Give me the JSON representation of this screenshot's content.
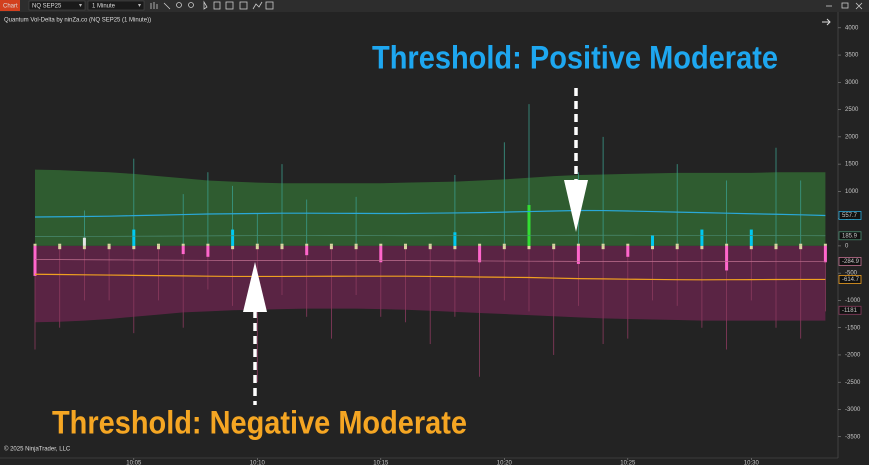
{
  "toolbar": {
    "chart_button": "Chart",
    "instrument": "NQ SEP25",
    "interval": "1 Minute"
  },
  "chart_data": {
    "type": "voldelta",
    "title": "Quantum Vol-Delta by ninZa.co (NQ SEP25 (1 Minute))",
    "copyright": "© 2025 NinjaTrader, LLC",
    "annotations": [
      {
        "text": "Threshold: Positive Moderate",
        "color": "#1ea7f0"
      },
      {
        "text": "Threshold: Negative Moderate",
        "color": "#f5a623"
      }
    ],
    "categories": [
      null,
      null,
      null,
      null,
      "10:05",
      null,
      null,
      null,
      null,
      "10:10",
      null,
      null,
      null,
      null,
      "10:15",
      null,
      null,
      null,
      null,
      "10:20",
      null,
      null,
      null,
      null,
      "10:25",
      null,
      null,
      null,
      null,
      "10:30",
      null,
      null,
      null
    ],
    "ylim": [
      -3890,
      4180
    ],
    "yticks": [
      4000,
      3500,
      3000,
      2500,
      2000,
      1500,
      1000,
      500,
      0,
      -500,
      -1000,
      -1500,
      -2000,
      -2500,
      -3000,
      -3500
    ],
    "bands": [
      {
        "name": "upper band",
        "color": "#2f5c30",
        "values": [
          1400,
          1390,
          1370,
          1350,
          1320,
          1280,
          1240,
          1200,
          1180,
          1160,
          1150,
          1150,
          1150,
          1150,
          1150,
          1160,
          1170,
          1180,
          1200,
          1220,
          1250,
          1280,
          1300,
          1310,
          1320,
          1330,
          1340,
          1340,
          1340,
          1340,
          1350,
          1350,
          1350
        ]
      },
      {
        "name": "lower band",
        "color": "#5a2444",
        "values": [
          -1400,
          -1390,
          -1370,
          -1340,
          -1300,
          -1260,
          -1220,
          -1200,
          -1180,
          -1170,
          -1160,
          -1150,
          -1150,
          -1150,
          -1160,
          -1170,
          -1190,
          -1210,
          -1230,
          -1250,
          -1270,
          -1290,
          -1310,
          -1330,
          -1340,
          -1350,
          -1360,
          -1370,
          -1370,
          -1370,
          -1370,
          -1370,
          -1370
        ]
      }
    ],
    "wicks": [
      {
        "name": "high",
        "color": "#3a9a88",
        "values": [
          0,
          0,
          650,
          0,
          1600,
          0,
          950,
          1350,
          1100,
          600,
          1500,
          850,
          0,
          900,
          0,
          0,
          0,
          1300,
          0,
          1900,
          2600,
          0,
          1350,
          2000,
          0,
          0,
          1500,
          0,
          1200,
          0,
          1800,
          1200,
          0
        ]
      },
      {
        "name": "low",
        "color": "#8a3a5e",
        "values": [
          -1900,
          -1500,
          -1000,
          -1000,
          -1600,
          -1000,
          -1500,
          -800,
          -1100,
          -2500,
          -900,
          -1300,
          -1700,
          -900,
          -1300,
          -1400,
          -1800,
          -1300,
          -2400,
          -1000,
          -1200,
          -2000,
          -1100,
          -1800,
          -1700,
          -1000,
          -1100,
          -1500,
          -1900,
          -1000,
          -1500,
          -1700,
          -1200
        ]
      }
    ],
    "bars": [
      {
        "name": "up",
        "values": [
          40,
          40,
          150,
          40,
          300,
          40,
          40,
          40,
          300,
          40,
          40,
          40,
          40,
          40,
          40,
          40,
          40,
          250,
          40,
          40,
          750,
          40,
          40,
          40,
          40,
          200,
          40,
          300,
          40,
          300,
          40,
          40,
          40
        ],
        "colors": [
          "#d9d4a0",
          "#d9d4a0",
          "#e6e6e6",
          "#d9d4a0",
          "#00c8f0",
          "#d9d4a0",
          "#d9d4a0",
          "#d9d4a0",
          "#00c8f0",
          "#d9d4a0",
          "#d9d4a0",
          "#d9d4a0",
          "#d9d4a0",
          "#d9d4a0",
          "#d9d4a0",
          "#d9d4a0",
          "#d9d4a0",
          "#00c8f0",
          "#d9d4a0",
          "#d9d4a0",
          "#33dd33",
          "#d9d4a0",
          "#d9d4a0",
          "#d9d4a0",
          "#d9d4a0",
          "#00c8f0",
          "#d9d4a0",
          "#00c8f0",
          "#d9d4a0",
          "#00c8f0",
          "#d9d4a0",
          "#d9d4a0",
          "#d9d4a0"
        ]
      },
      {
        "name": "down",
        "values": [
          -550,
          -60,
          -60,
          -60,
          -60,
          -60,
          -150,
          -200,
          -60,
          -60,
          -60,
          -170,
          -60,
          -60,
          -300,
          -60,
          -60,
          -60,
          -300,
          -60,
          -60,
          -60,
          -330,
          -60,
          -200,
          -60,
          -60,
          -60,
          -450,
          -60,
          -60,
          -60,
          -300
        ],
        "colors": [
          "#ff66cc",
          "#d9d4a0",
          "#d9d4a0",
          "#d9d4a0",
          "#d9d4a0",
          "#d9d4a0",
          "#ff66cc",
          "#ff66cc",
          "#d9d4a0",
          "#d9d4a0",
          "#d9d4a0",
          "#ff66cc",
          "#d9d4a0",
          "#d9d4a0",
          "#ff66cc",
          "#d9d4a0",
          "#d9d4a0",
          "#d9d4a0",
          "#ff66cc",
          "#d9d4a0",
          "#d9d4a0",
          "#d9d4a0",
          "#ff66cc",
          "#d9d4a0",
          "#ff66cc",
          "#d9d4a0",
          "#d9d4a0",
          "#d9d4a0",
          "#ff66cc",
          "#d9d4a0",
          "#d9d4a0",
          "#d9d4a0",
          "#ff66cc"
        ]
      }
    ],
    "series": [
      {
        "name": "positive average",
        "color": "#2aa8d8",
        "values": [
          530,
          535,
          540,
          545,
          555,
          565,
          575,
          585,
          590,
          595,
          600,
          600,
          598,
          596,
          595,
          595,
          600,
          605,
          610,
          620,
          630,
          640,
          650,
          648,
          640,
          630,
          620,
          610,
          600,
          590,
          580,
          570,
          557.7
        ]
      },
      {
        "name": "positive threshold",
        "color": "#4a8a70",
        "values": [
          170,
          172,
          174,
          176,
          178,
          180,
          182,
          184,
          186,
          188,
          190,
          190,
          189,
          188,
          187,
          186,
          186,
          187,
          188,
          190,
          192,
          194,
          196,
          196,
          195,
          194,
          193,
          192,
          190,
          189,
          188,
          187,
          185.9
        ]
      },
      {
        "name": "negative threshold",
        "color": "#c07090",
        "values": [
          -250,
          -252,
          -254,
          -256,
          -258,
          -260,
          -262,
          -264,
          -266,
          -268,
          -270,
          -270,
          -270,
          -270,
          -270,
          -270,
          -272,
          -274,
          -276,
          -278,
          -280,
          -282,
          -284,
          -286,
          -288,
          -288,
          -288,
          -287,
          -286,
          -286,
          -285,
          -285,
          -284.9
        ]
      },
      {
        "name": "negative average",
        "color": "#f0a020",
        "values": [
          -520,
          -525,
          -530,
          -535,
          -540,
          -545,
          -550,
          -555,
          -560,
          -560,
          -560,
          -558,
          -556,
          -555,
          -555,
          -555,
          -560,
          -565,
          -570,
          -575,
          -580,
          -590,
          -600,
          -605,
          -610,
          -615,
          -620,
          -622,
          -620,
          -618,
          -616,
          -615,
          -614.7
        ]
      }
    ],
    "markers": [
      {
        "value": 557.7,
        "color": "#2aa8d8"
      },
      {
        "value": 185.9,
        "color": "#4a8a70"
      },
      {
        "value": -284.9,
        "color": "#c07090"
      },
      {
        "value": -614.7,
        "color": "#f0a020"
      },
      {
        "value": -1181,
        "color": "#8a3a5e"
      }
    ]
  }
}
